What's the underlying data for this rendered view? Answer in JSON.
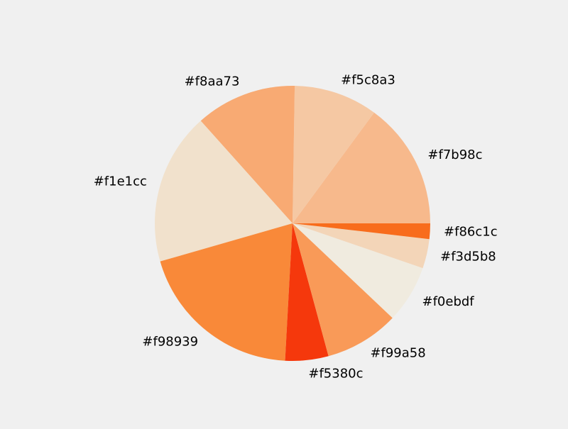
{
  "chart_data": {
    "type": "pie",
    "title": "",
    "start_angle_deg": 0,
    "direction": "counterclockwise",
    "slices": [
      {
        "label": "#f7b98c",
        "value": 14.7,
        "color": "#f7b98c"
      },
      {
        "label": "#f5c8a3",
        "value": 9.7,
        "color": "#f5c8a3"
      },
      {
        "label": "#f8aa73",
        "value": 11.7,
        "color": "#f8aa73"
      },
      {
        "label": "#f1e1cc",
        "value": 17.6,
        "color": "#f1e1cc"
      },
      {
        "label": "#f98939",
        "value": 19.4,
        "color": "#f98939"
      },
      {
        "label": "#f5380c",
        "value": 5.0,
        "color": "#f5380c"
      },
      {
        "label": "#f99a58",
        "value": 8.6,
        "color": "#f99a58"
      },
      {
        "label": "#f0ebdf",
        "value": 6.7,
        "color": "#f0ebdf"
      },
      {
        "label": "#f3d5b8",
        "value": 3.4,
        "color": "#f3d5b8"
      },
      {
        "label": "#f86c1c",
        "value": 1.8,
        "color": "#f86c1c"
      }
    ]
  }
}
